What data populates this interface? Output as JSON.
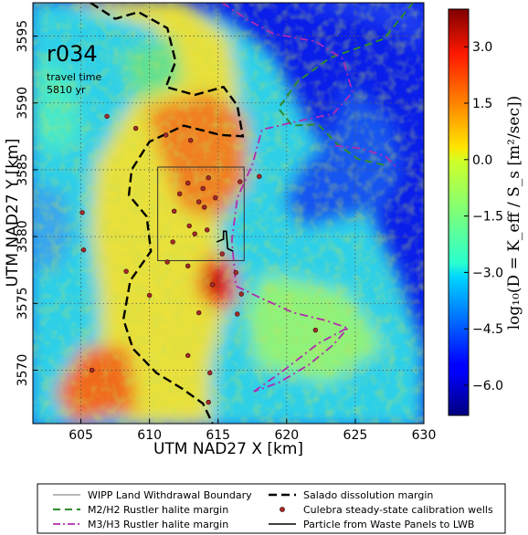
{
  "chart_data": {
    "type": "heatmap",
    "xlabel": "UTM NAD27 X [km]",
    "ylabel": "UTM NAD27 Y [km]",
    "xlim": [
      601.5,
      630
    ],
    "ylim": [
      3566,
      3597.5
    ],
    "xticks": [
      605,
      610,
      615,
      620,
      625,
      630
    ],
    "yticks": [
      3570,
      3575,
      3580,
      3585,
      3590,
      3595
    ],
    "grid": true,
    "annotation": {
      "run": "r034",
      "line1": "travel time",
      "line2": "5810 yr"
    },
    "colorbar": {
      "label": "log₁₀(D = K_eff / S_s  [m²/sec])",
      "vmin": -6.8,
      "vmax": 4.0,
      "ticks": [
        3.0,
        1.5,
        0.0,
        -1.5,
        -3.0,
        -4.5,
        -6.0
      ],
      "tick_labels": [
        "3.0",
        "1.5",
        "0.0",
        "−1.5",
        "−3.0",
        "−4.5",
        "−6.0"
      ],
      "colormap": "jet"
    },
    "wipp_boundary": {
      "x": [
        610.6,
        616.9
      ],
      "y": [
        3578.2,
        3585.2
      ]
    },
    "salado_margin": [
      [
        605.7,
        3597.5
      ],
      [
        607.5,
        3596.3
      ],
      [
        609.2,
        3596.8
      ],
      [
        611.3,
        3595.6
      ],
      [
        611.9,
        3593.1
      ],
      [
        611.2,
        3591.2
      ],
      [
        613.3,
        3590.6
      ],
      [
        615.4,
        3591.2
      ],
      [
        616.4,
        3589.8
      ],
      [
        616.8,
        3587.5
      ],
      [
        615.2,
        3587.6
      ],
      [
        612.5,
        3588.3
      ],
      [
        610.0,
        3587.1
      ],
      [
        608.7,
        3585.0
      ],
      [
        608.5,
        3583.1
      ],
      [
        609.8,
        3581.5
      ],
      [
        610.1,
        3578.9
      ],
      [
        608.6,
        3576.7
      ],
      [
        608.1,
        3573.8
      ],
      [
        608.8,
        3571.6
      ],
      [
        610.5,
        3569.8
      ],
      [
        612.4,
        3568.6
      ],
      [
        613.9,
        3567.5
      ],
      [
        614.6,
        3566.0
      ]
    ],
    "m2h2_margin": [
      [
        629.2,
        3597.5
      ],
      [
        627.1,
        3594.8
      ],
      [
        623.2,
        3593.4
      ],
      [
        620.8,
        3591.6
      ],
      [
        619.4,
        3589.6
      ],
      [
        620.4,
        3588.3
      ],
      [
        622.3,
        3588.4
      ],
      [
        623.7,
        3586.9
      ],
      [
        625.2,
        3585.8
      ],
      [
        627.3,
        3585.3
      ]
    ],
    "m3h3_margin": [
      [
        615.3,
        3597.5
      ],
      [
        617.2,
        3596.2
      ],
      [
        619.0,
        3595.2
      ],
      [
        622.1,
        3594.6
      ],
      [
        624.1,
        3593.3
      ],
      [
        624.8,
        3590.8
      ],
      [
        623.4,
        3589.2
      ],
      [
        621.1,
        3588.7
      ],
      [
        618.2,
        3588.0
      ],
      [
        617.5,
        3585.4
      ],
      [
        616.4,
        3582.9
      ],
      [
        616.0,
        3579.7
      ],
      [
        616.3,
        3576.3
      ],
      [
        618.1,
        3575.4
      ],
      [
        620.5,
        3574.3
      ],
      [
        622.9,
        3573.7
      ],
      [
        624.6,
        3573.1
      ]
    ],
    "m3h3_lower": [
      [
        617.6,
        3568.4
      ],
      [
        619.8,
        3570.0
      ],
      [
        622.3,
        3572.0
      ],
      [
        624.5,
        3573.2
      ],
      [
        623.4,
        3571.9
      ],
      [
        621.6,
        3570.4
      ],
      [
        619.5,
        3569.1
      ]
    ],
    "m3h3_upper_ring": [
      [
        623.5,
        3586.8
      ],
      [
        625.4,
        3586.6
      ],
      [
        627.2,
        3586.0
      ],
      [
        628.0,
        3585.2
      ]
    ],
    "particle_path": [
      [
        614.9,
        3579.6
      ],
      [
        615.4,
        3579.8
      ],
      [
        615.4,
        3580.4
      ],
      [
        615.6,
        3580.4
      ],
      [
        615.7,
        3579.1
      ],
      [
        616.1,
        3578.9
      ]
    ],
    "wells": [
      [
        606.9,
        3589.0
      ],
      [
        609.0,
        3588.1
      ],
      [
        611.2,
        3587.6
      ],
      [
        613.0,
        3587.2
      ],
      [
        612.8,
        3584.0
      ],
      [
        614.3,
        3584.4
      ],
      [
        613.9,
        3583.6
      ],
      [
        612.2,
        3583.2
      ],
      [
        613.6,
        3582.6
      ],
      [
        614.0,
        3582.2
      ],
      [
        611.8,
        3581.9
      ],
      [
        612.9,
        3580.8
      ],
      [
        614.2,
        3580.5
      ],
      [
        613.3,
        3580.2
      ],
      [
        611.7,
        3579.6
      ],
      [
        614.8,
        3582.9
      ],
      [
        616.6,
        3584.1
      ],
      [
        618.0,
        3584.5
      ],
      [
        608.3,
        3577.4
      ],
      [
        611.3,
        3578.1
      ],
      [
        612.8,
        3577.8
      ],
      [
        614.6,
        3576.4
      ],
      [
        615.3,
        3578.7
      ],
      [
        605.1,
        3581.8
      ],
      [
        605.2,
        3579.0
      ],
      [
        605.8,
        3570.0
      ],
      [
        610.0,
        3575.6
      ],
      [
        613.6,
        3574.3
      ],
      [
        616.4,
        3574.2
      ],
      [
        612.8,
        3571.1
      ],
      [
        614.4,
        3569.8
      ],
      [
        614.3,
        3567.6
      ],
      [
        622.1,
        3573.0
      ],
      [
        616.3,
        3577.3
      ],
      [
        616.7,
        3575.7
      ]
    ]
  },
  "legend": {
    "items": [
      {
        "label": "WIPP Land Withdrawal Boundary",
        "color": "#444444",
        "style": "solid-thin"
      },
      {
        "label": "M2/H2 Rustler halite margin",
        "color": "#2e8b2e",
        "style": "dashed"
      },
      {
        "label": "M3/H3 Rustler halite margin",
        "color": "#b02cb0",
        "style": "dashdot"
      },
      {
        "label": "Salado dissolution margin",
        "color": "#000000",
        "style": "dashed-bold"
      },
      {
        "label": "Culebra steady-state calibration wells",
        "color": "#a52a2a",
        "style": "dot"
      },
      {
        "label": "Particle from Waste Panels to LWB",
        "color": "#000000",
        "style": "solid"
      }
    ]
  }
}
